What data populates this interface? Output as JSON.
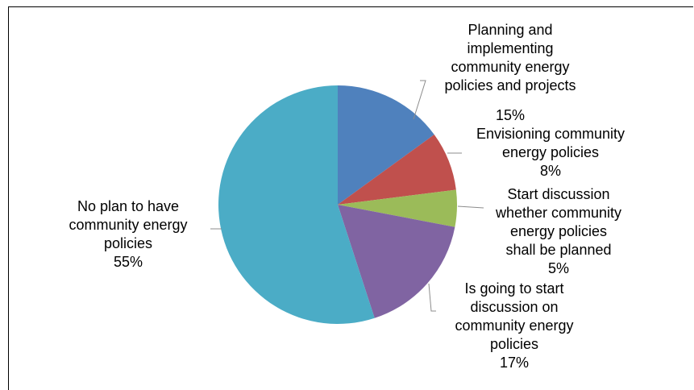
{
  "chart_data": {
    "type": "pie",
    "title": "",
    "start_angle_deg": 0,
    "direction": "clockwise",
    "legend": "none",
    "slices": [
      {
        "label_lines": [
          "Planning and",
          "implementing",
          "community energy",
          "policies and projects"
        ],
        "value": 15,
        "value_label": "15%",
        "color": "#4f81bd"
      },
      {
        "label_lines": [
          "Envisioning community",
          "energy policies"
        ],
        "value": 8,
        "value_label": "8%",
        "color": "#c0504d"
      },
      {
        "label_lines": [
          "Start discussion",
          "whether community",
          "energy policies",
          "shall be planned"
        ],
        "value": 5,
        "value_label": "5%",
        "color": "#9bbb59"
      },
      {
        "label_lines": [
          "Is going to start",
          "discussion on",
          "community energy",
          "policies"
        ],
        "value": 17,
        "value_label": "17%",
        "color": "#8064a2"
      },
      {
        "label_lines": [
          "No plan to have",
          "community energy",
          "policies"
        ],
        "value": 55,
        "value_label": "55%",
        "color": "#4bacc6"
      }
    ]
  }
}
